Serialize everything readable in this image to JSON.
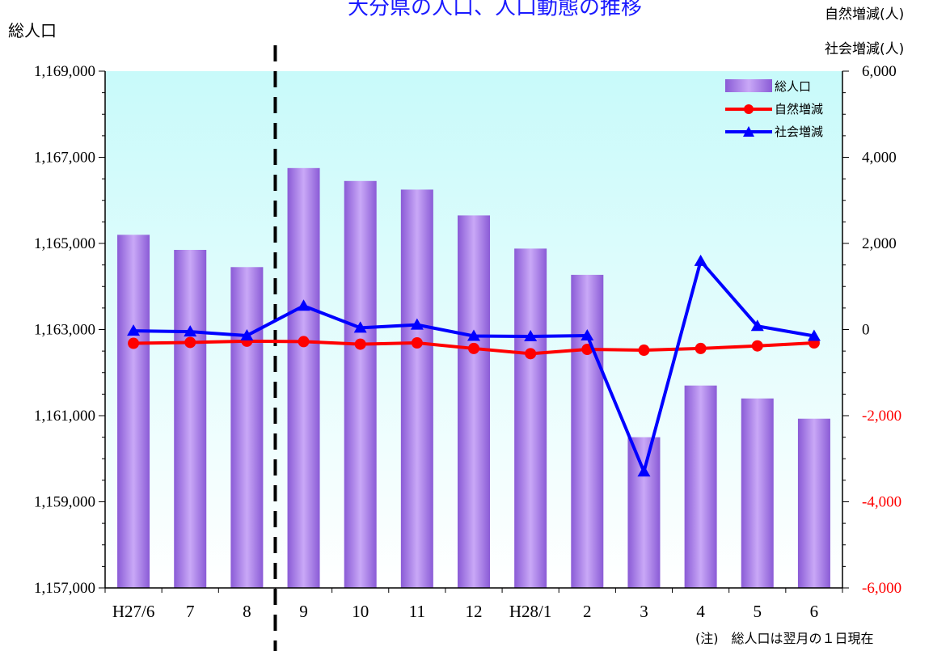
{
  "chart_data": {
    "type": "bar",
    "title": "大分県の人口、人口動態の推移",
    "left_axis_label": "総人口",
    "right_axis_labels": [
      "自然増減(人)",
      "社会増減(人)"
    ],
    "note": "(注)　総人口は翌月の１日現在",
    "categories": [
      "H27/6",
      "7",
      "8",
      "9",
      "10",
      "11",
      "12",
      "H28/1",
      "2",
      "3",
      "4",
      "5",
      "6"
    ],
    "left_axis": {
      "ylim": [
        1157000,
        1169000
      ],
      "ticks": [
        "1,157,000",
        "1,159,000",
        "1,161,000",
        "1,163,000",
        "1,165,000",
        "1,167,000",
        "1,169,000"
      ]
    },
    "right_axis": {
      "ylim": [
        -6000,
        6000
      ],
      "ticks": [
        "-6,000",
        "-4,000",
        "-2,000",
        "0",
        "2,000",
        "4,000",
        "6,000"
      ]
    },
    "series": [
      {
        "name": "総人口",
        "axis": "left",
        "kind": "bar",
        "color": "#9b6ee0",
        "values": [
          1165200,
          1164850,
          1164450,
          1166750,
          1166450,
          1166250,
          1165650,
          1164880,
          1164270,
          1160500,
          1161700,
          1161400,
          1160930
        ]
      },
      {
        "name": "自然増減",
        "axis": "right",
        "kind": "line",
        "color": "#ff0000",
        "marker": "circle",
        "values": [
          -320,
          -300,
          -270,
          -280,
          -340,
          -310,
          -440,
          -560,
          -460,
          -480,
          -440,
          -380,
          -310
        ]
      },
      {
        "name": "社会増減",
        "axis": "right",
        "kind": "line",
        "color": "#0000ff",
        "marker": "triangle",
        "values": [
          -30,
          -50,
          -140,
          550,
          40,
          110,
          -150,
          -160,
          -140,
          -3300,
          1590,
          80,
          -150
        ]
      }
    ],
    "divider_after_category": "8",
    "legend_position": "top-right",
    "plot_background": [
      "#c8fafa",
      "#ffffff"
    ]
  }
}
